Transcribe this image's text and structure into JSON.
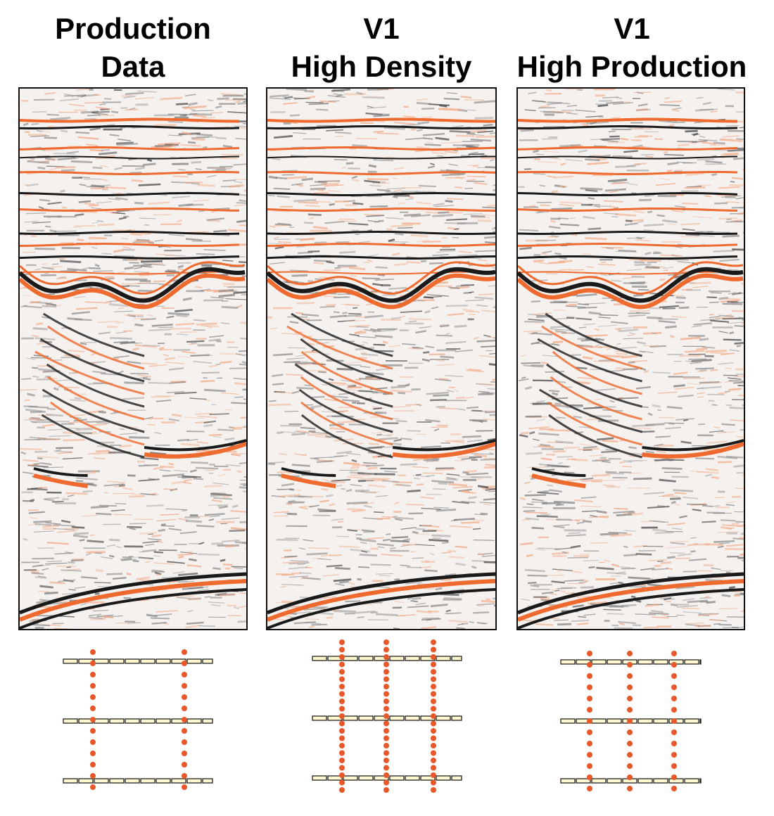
{
  "panels": [
    {
      "title_line1": "Production",
      "title_line2": "Data",
      "layout": "production"
    },
    {
      "title_line1": "V1",
      "title_line2": "High Density",
      "layout": "high-density"
    },
    {
      "title_line1": "V1",
      "title_line2": "High Production",
      "layout": "high-production"
    }
  ],
  "colors": {
    "seismic_orange": "#ee6a2e",
    "seismic_black": "#1a1a1a",
    "receiver_line_fill": "#fff8d0",
    "source_point": "#e8582a"
  }
}
